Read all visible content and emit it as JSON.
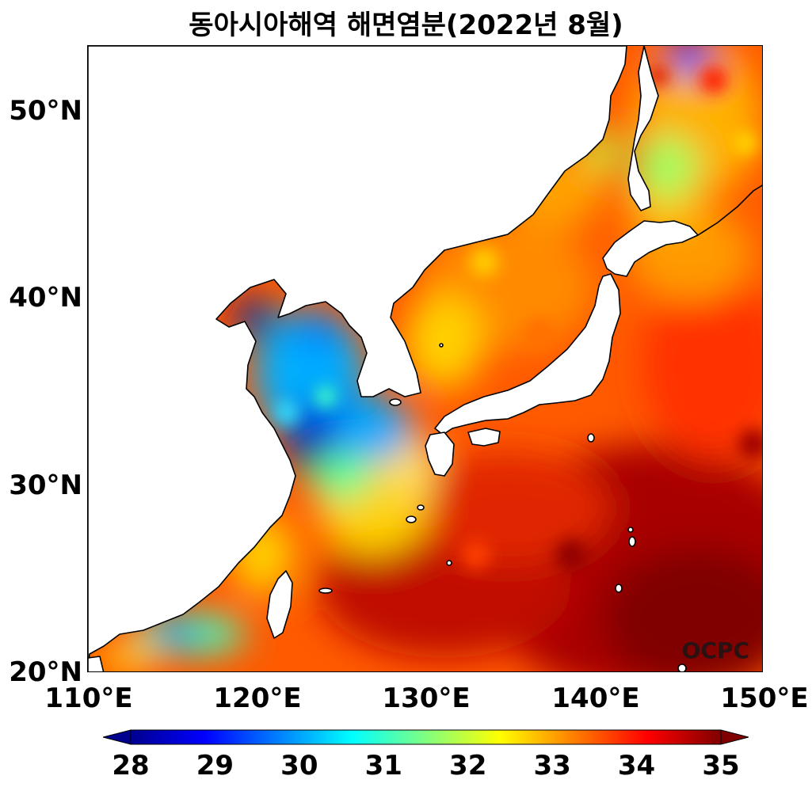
{
  "title": "동아시아해역 해면염분(2022년 8월)",
  "credit": "OCPC",
  "axes": {
    "x_ticks": [
      "110°E",
      "120°E",
      "130°E",
      "140°E",
      "150°E"
    ],
    "y_ticks": [
      "50°N",
      "40°N",
      "30°N",
      "20°N"
    ]
  },
  "colorbar": {
    "colormap": "jet",
    "min": 28,
    "max": 35,
    "extend": "both",
    "ticks": [
      "28",
      "29",
      "30",
      "31",
      "32",
      "33",
      "34",
      "35"
    ]
  },
  "map": {
    "lon_range": [
      110,
      150
    ],
    "lat_range": [
      20,
      53.5
    ],
    "colors": {
      "low": "#00008f",
      "mid_low": "#00c8ff",
      "mid": "#80ff80",
      "mid_high": "#ffe000",
      "high": "#ff6000",
      "max": "#800000",
      "land": "#ffffff",
      "coast": "#000000"
    }
  }
}
